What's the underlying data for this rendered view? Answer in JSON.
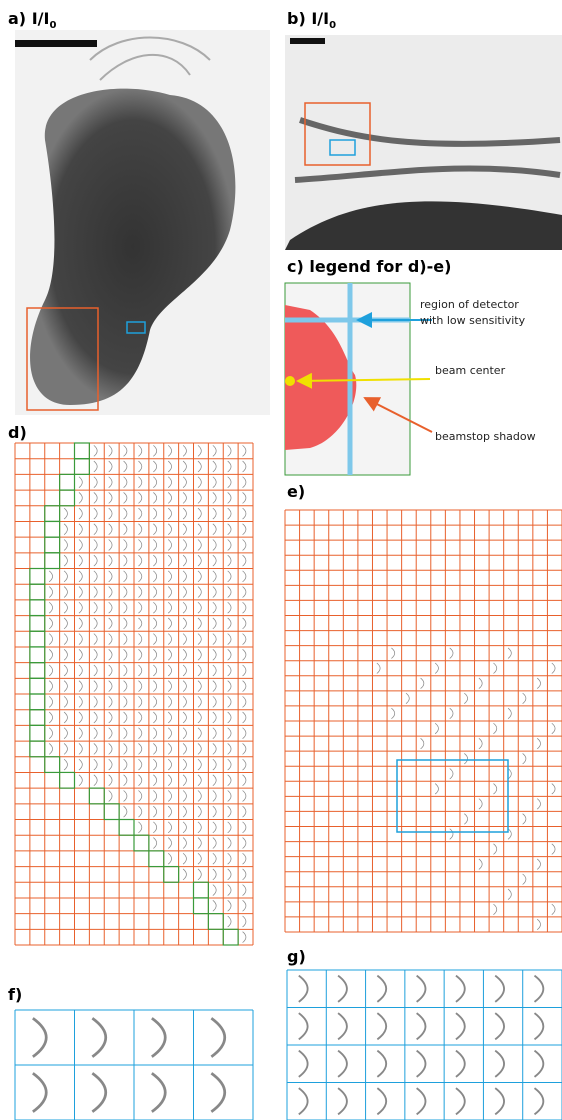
{
  "panels": {
    "a": {
      "label": "a)",
      "title": "I/I",
      "subscript": "0"
    },
    "b": {
      "label": "b)",
      "title": "I/I",
      "subscript": "0"
    },
    "c": {
      "title": "c) legend for d)-e)",
      "annotations": [
        "region of detector",
        "with low sensitivity",
        "beam center",
        "beamstop shadow"
      ]
    },
    "d": {
      "label": "d)"
    },
    "e": {
      "label": "e)"
    },
    "f": {
      "label": "f)"
    },
    "g": {
      "label": "g)"
    }
  }
}
